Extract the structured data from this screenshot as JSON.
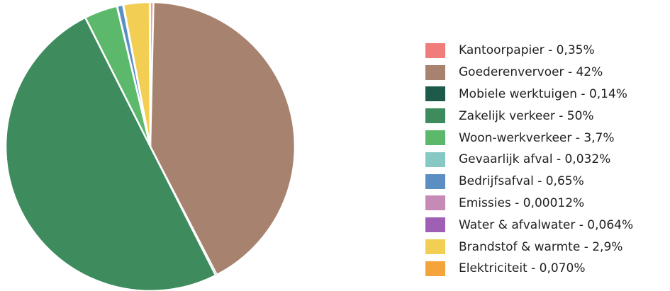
{
  "chart_data": {
    "type": "pie",
    "title": "",
    "legend_position": "right",
    "slices": [
      {
        "label": "Kantoorpapier - 0,35%",
        "value": 0.35,
        "color": "#f07c7c"
      },
      {
        "label": "Goederenvervoer - 42%",
        "value": 42,
        "color": "#a7836f"
      },
      {
        "label": "Mobiele werktuigen - 0,14%",
        "value": 0.14,
        "color": "#1d5a4a"
      },
      {
        "label": "Zakelijk verkeer - 50%",
        "value": 50,
        "color": "#3e8c5e"
      },
      {
        "label": "Woon-werkverkeer - 3,7%",
        "value": 3.7,
        "color": "#5cb86a"
      },
      {
        "label": "Gevaarlijk afval - 0,032%",
        "value": 0.032,
        "color": "#86c9c4"
      },
      {
        "label": "Bedrijfsafval - 0,65%",
        "value": 0.65,
        "color": "#5b8fc3"
      },
      {
        "label": "Emissies - 0,00012%",
        "value": 0.00012,
        "color": "#c58ab5"
      },
      {
        "label": "Water & afvalwater - 0,064%",
        "value": 0.064,
        "color": "#9e5fb5"
      },
      {
        "label": "Brandstof & warmte - 2,9%",
        "value": 2.9,
        "color": "#f2cf53"
      },
      {
        "label": "Elektriciteit - 0,070%",
        "value": 0.07,
        "color": "#f5a33b"
      }
    ]
  }
}
